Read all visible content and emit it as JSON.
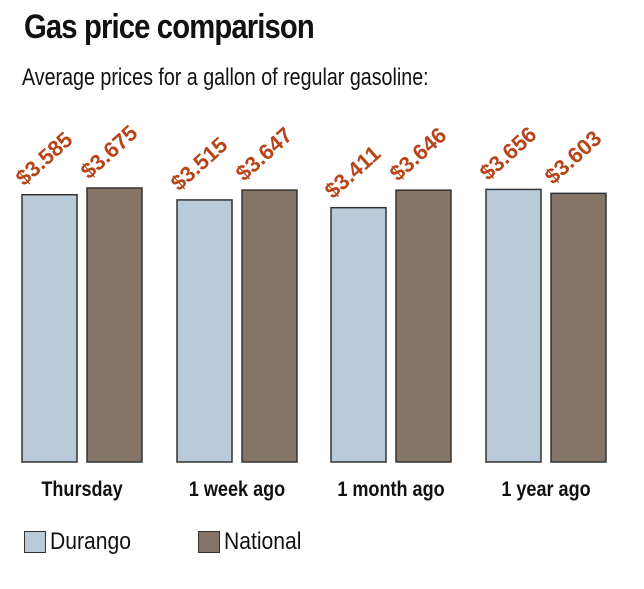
{
  "title": "Gas price comparison",
  "subtitle": "Average prices for a gallon of regular gasoline:",
  "colors": {
    "durango": "#b9cbd9",
    "national": "#857566",
    "label": "#b8441a"
  },
  "chart_data": {
    "type": "bar",
    "categories": [
      "Thursday",
      "1 week ago",
      "1 month ago",
      "1 year ago"
    ],
    "series": [
      {
        "name": "Durango",
        "values": [
          3.585,
          3.515,
          3.411,
          3.656
        ],
        "labels": [
          "$3.585",
          "$3.515",
          "$3.411",
          "$3.656"
        ]
      },
      {
        "name": "National",
        "values": [
          3.675,
          3.647,
          3.646,
          3.603
        ],
        "labels": [
          "$3.675",
          "$3.647",
          "$3.646",
          "$3.603"
        ]
      }
    ],
    "value_prefix": "$",
    "grid": false,
    "legend_position": "bottom-left"
  },
  "legend": {
    "items": [
      {
        "label": "Durango"
      },
      {
        "label": "National"
      }
    ]
  }
}
